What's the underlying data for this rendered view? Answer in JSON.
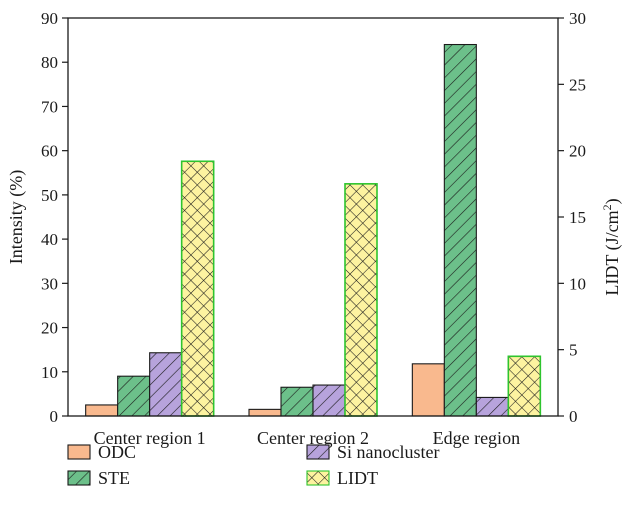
{
  "chart_data": {
    "type": "bar",
    "categories": [
      "Center region 1",
      "Center region 2",
      "Edge region"
    ],
    "series": [
      {
        "name": "ODC",
        "axis": "left",
        "color": "#f9b98e",
        "stroke": "#1a1a1a",
        "pattern": "solid",
        "values": [
          2.5,
          1.5,
          11.8
        ]
      },
      {
        "name": "STE",
        "axis": "left",
        "color": "#6cc08a",
        "stroke": "#1a1a1a",
        "pattern": "diagonal-hatch",
        "values": [
          9.0,
          6.5,
          84.0
        ]
      },
      {
        "name": "Si nanocluster",
        "axis": "left",
        "color": "#b7a3dc",
        "stroke": "#1a1a1a",
        "pattern": "diagonal-hatch",
        "values": [
          14.3,
          7.0,
          4.2
        ]
      },
      {
        "name": "LIDT",
        "axis": "right",
        "color": "#fdf3a0",
        "stroke": "#2ec42e",
        "pattern": "cross-hatch",
        "values": [
          19.2,
          17.5,
          4.5
        ]
      }
    ],
    "ylabel": "Intensity (%)",
    "ylim": [
      0,
      90
    ],
    "yticks": [
      "0",
      "10",
      "20",
      "30",
      "40",
      "50",
      "60",
      "70",
      "80",
      "90"
    ],
    "y2label": "LIDT (J/cm",
    "y2label_sup": "2",
    "y2label_close": ")",
    "y2lim": [
      0,
      30
    ],
    "y2ticks": [
      "0",
      "5",
      "10",
      "15",
      "20",
      "25",
      "30"
    ],
    "grid": false,
    "legend_position": "bottom"
  }
}
